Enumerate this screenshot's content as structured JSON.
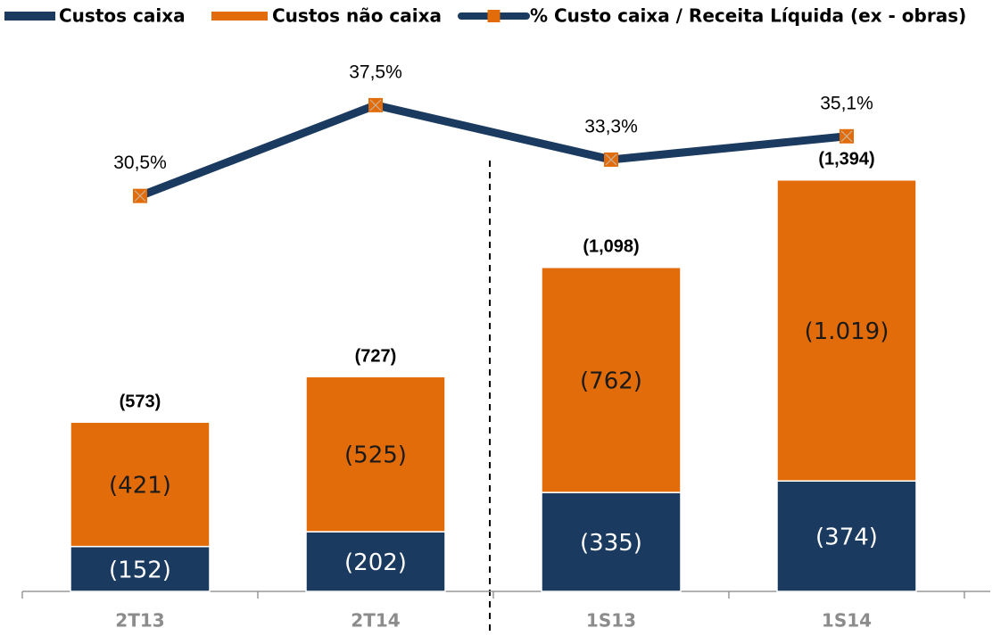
{
  "chart_data": {
    "type": "bar_line",
    "categories": [
      "2T13",
      "2T14",
      "1S13",
      "1S14"
    ],
    "series": [
      {
        "name": "Custos caixa",
        "color": "#1b3a60",
        "values": [
          152,
          202,
          335,
          374
        ],
        "value_labels": [
          "(152)",
          "(202)",
          "(335)",
          "(374)"
        ]
      },
      {
        "name": "Custos não caixa",
        "color": "#e36c0a",
        "values": [
          421,
          525,
          762,
          1019
        ],
        "value_labels": [
          "(421)",
          "(525)",
          "(762)",
          "(1.019)"
        ]
      },
      {
        "name": "% Custo caixa / Receita Líquida (ex - obras)",
        "color": "#1b3a60",
        "marker_color": "#e36c0a",
        "type": "line",
        "axis": "y2",
        "values": [
          30.5,
          37.5,
          33.3,
          35.1
        ],
        "value_labels": [
          "30,5%",
          "37,5%",
          "33,3%",
          "35,1%"
        ]
      }
    ],
    "totals": [
      573,
      727,
      1098,
      1394
    ],
    "total_labels": [
      "(573)",
      "(727)",
      "(1,098)",
      "(1,394)"
    ],
    "ylim": [
      0,
      1800
    ],
    "y2lim": [
      0,
      41
    ],
    "legend": "top"
  }
}
